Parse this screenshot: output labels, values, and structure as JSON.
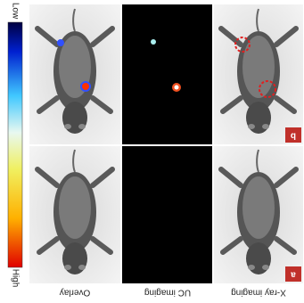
{
  "colorbar": {
    "low": "Low",
    "high": "High"
  },
  "columns": [
    "Overlay",
    "UC imaging",
    "X-ray imaging"
  ],
  "panels": [
    "a",
    "b"
  ]
}
